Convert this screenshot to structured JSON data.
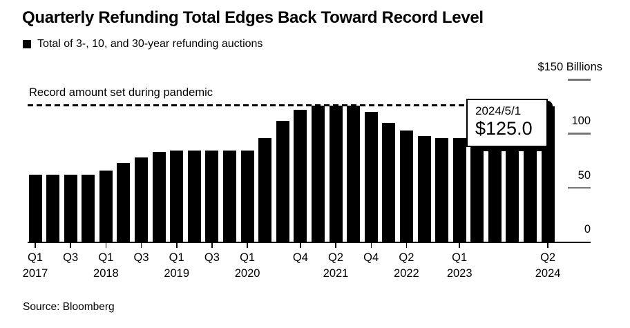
{
  "header": {
    "title": "Quarterly Refunding Total Edges Back Toward Record Level",
    "legend_label": "Total of 3-, 10, and 30-year refunding auctions"
  },
  "footer": {
    "source": "Source: Bloomberg"
  },
  "chart_data": {
    "type": "bar",
    "title": "Quarterly Refunding Total Edges Back Toward Record Level",
    "unit_label": "$150 Billions",
    "xlabel": "",
    "ylabel": "Billions of dollars",
    "ylim": [
      0,
      150
    ],
    "grid": false,
    "legend_position": "top-left",
    "bar_color": "#000000",
    "background_color": "#ffffff",
    "tick_color": "#767676",
    "categories": [
      "Q1 2017",
      "Q2 2017",
      "Q3 2017",
      "Q4 2017",
      "Q1 2018",
      "Q2 2018",
      "Q3 2018",
      "Q4 2018",
      "Q1 2019",
      "Q2 2019",
      "Q3 2019",
      "Q4 2019",
      "Q1 2020",
      "Q2 2020",
      "Q3 2020",
      "Q4 2020",
      "Q1 2021",
      "Q2 2021",
      "Q3 2021",
      "Q4 2021",
      "Q1 2022",
      "Q2 2022",
      "Q3 2022",
      "Q4 2022",
      "Q1 2023",
      "Q2 2023",
      "Q3 2023",
      "Q4 2023",
      "Q1 2024",
      "Q2 2024"
    ],
    "series": [
      {
        "name": "Total of 3-, 10, and 30-year refunding auctions",
        "values": [
          62,
          62,
          62,
          62,
          66,
          73,
          78,
          83,
          84,
          84,
          84,
          84,
          84,
          96,
          112,
          122,
          126,
          126,
          126,
          120,
          110,
          103,
          98,
          96,
          96,
          96,
          103,
          112,
          121,
          125
        ]
      }
    ],
    "yticks": [
      {
        "value": 150,
        "label": "$150 Billions"
      },
      {
        "value": 100,
        "label": "100"
      },
      {
        "value": 50,
        "label": "50"
      },
      {
        "value": 0,
        "label": "0"
      }
    ],
    "xticks": [
      {
        "index": 0,
        "quarter": "Q1",
        "year": "2017"
      },
      {
        "index": 2,
        "quarter": "Q3"
      },
      {
        "index": 4,
        "quarter": "Q1",
        "year": "2018"
      },
      {
        "index": 6,
        "quarter": "Q3"
      },
      {
        "index": 8,
        "quarter": "Q1",
        "year": "2019"
      },
      {
        "index": 10,
        "quarter": "Q3"
      },
      {
        "index": 12,
        "quarter": "Q1",
        "year": "2020"
      },
      {
        "index": 15,
        "quarter": "Q4"
      },
      {
        "index": 17,
        "quarter": "Q2",
        "year": "2021"
      },
      {
        "index": 19,
        "quarter": "Q4"
      },
      {
        "index": 21,
        "quarter": "Q2",
        "year": "2022"
      },
      {
        "index": 24,
        "quarter": "Q1",
        "year": "2023"
      },
      {
        "index": 29,
        "quarter": "Q2",
        "year": "2024"
      }
    ],
    "record_line": {
      "label": "Record amount set during pandemic",
      "value": 126
    },
    "tooltip": {
      "date": "2024/5/1",
      "value": "$125.0",
      "bar_index": 29
    }
  }
}
